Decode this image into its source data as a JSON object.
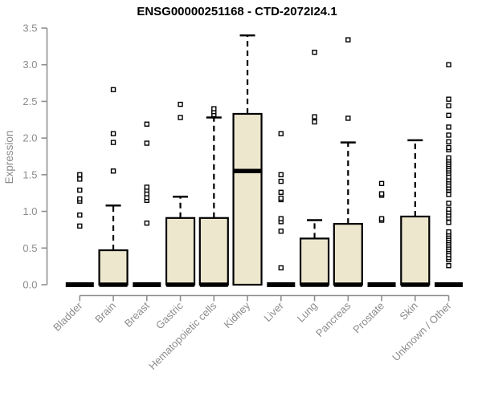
{
  "chart_data": {
    "type": "boxplot",
    "title": "ENSG00000251168 - CTD-2072I24.1",
    "ylabel": "Expression",
    "xlabel": "",
    "ylim": [
      0,
      3.5
    ],
    "yticks": [
      0,
      0.5,
      1.0,
      1.5,
      2.0,
      2.5,
      3.0,
      3.5
    ],
    "ytick_labels": [
      "0.0",
      "0.5",
      "1.0",
      "1.5",
      "2.0",
      "2.5",
      "3.0",
      "3.5"
    ],
    "grid": false,
    "legend": null,
    "colors": {
      "box_fill": "#EDE7CE",
      "box_stroke": "#000000",
      "median": "#000000",
      "whisker": "#000000",
      "outlier_stroke": "#000000",
      "outlier_fill": "#ffffff",
      "axis": "#8f8f8f",
      "tick_label": "#8c8c8c",
      "title": "#000000",
      "background": "#ffffff"
    },
    "categories": [
      "Bladder",
      "Brain",
      "Breast",
      "Gastric",
      "Hematopoietic cells",
      "Kidney",
      "Liver",
      "Lung",
      "Pancreas",
      "Prostate",
      "Skin",
      "Unknown / Other"
    ],
    "boxes": [
      {
        "category": "Bladder",
        "min": 0,
        "q1": 0,
        "median": 0,
        "q3": 0,
        "whisker_high": 0,
        "outliers": [
          0.8,
          0.95,
          1.14,
          1.17,
          1.29,
          1.44,
          1.5
        ]
      },
      {
        "category": "Brain",
        "min": 0,
        "q1": 0,
        "median": 0,
        "q3": 0.47,
        "whisker_high": 1.08,
        "outliers": [
          1.55,
          1.94,
          2.06,
          2.66
        ]
      },
      {
        "category": "Breast",
        "min": 0,
        "q1": 0,
        "median": 0,
        "q3": 0,
        "whisker_high": 0,
        "outliers": [
          0.84,
          1.15,
          1.19,
          1.24,
          1.29,
          1.33,
          1.93,
          2.19
        ]
      },
      {
        "category": "Gastric",
        "min": 0,
        "q1": 0,
        "median": 0,
        "q3": 0.91,
        "whisker_high": 1.2,
        "outliers": [
          2.28,
          2.46
        ]
      },
      {
        "category": "Hematopoietic cells",
        "min": 0,
        "q1": 0,
        "median": 0,
        "q3": 0.91,
        "whisker_high": 2.28,
        "outliers": [
          2.32,
          2.36,
          2.4
        ]
      },
      {
        "category": "Kidney",
        "min": 0,
        "q1": 0,
        "median": 1.55,
        "q3": 2.33,
        "whisker_high": 3.4,
        "outliers": []
      },
      {
        "category": "Liver",
        "min": 0,
        "q1": 0,
        "median": 0,
        "q3": 0,
        "whisker_high": 0,
        "outliers": [
          0.23,
          0.73,
          0.86,
          0.9,
          1.16,
          1.18,
          1.26,
          1.41,
          1.5,
          2.06
        ]
      },
      {
        "category": "Lung",
        "min": 0,
        "q1": 0,
        "median": 0,
        "q3": 0.63,
        "whisker_high": 0.88,
        "outliers": [
          2.22,
          2.29,
          3.17
        ]
      },
      {
        "category": "Pancreas",
        "min": 0,
        "q1": 0,
        "median": 0,
        "q3": 0.83,
        "whisker_high": 1.94,
        "outliers": [
          2.27,
          3.34
        ]
      },
      {
        "category": "Prostate",
        "min": 0,
        "q1": 0,
        "median": 0,
        "q3": 0,
        "whisker_high": 0,
        "outliers": [
          0.88,
          0.9,
          1.22,
          1.24,
          1.38
        ]
      },
      {
        "category": "Skin",
        "min": 0,
        "q1": 0,
        "median": 0,
        "q3": 0.93,
        "whisker_high": 1.97,
        "outliers": []
      },
      {
        "category": "Unknown / Other",
        "min": 0,
        "q1": 0,
        "median": 0,
        "q3": 0,
        "whisker_high": 0,
        "outliers": [
          0.26,
          0.34,
          0.37,
          0.41,
          0.45,
          0.48,
          0.51,
          0.54,
          0.57,
          0.6,
          0.63,
          0.66,
          0.69,
          0.72,
          0.85,
          0.91,
          0.95,
          0.99,
          1.03,
          1.11,
          1.23,
          1.29,
          1.32,
          1.36,
          1.4,
          1.43,
          1.47,
          1.52,
          1.55,
          1.58,
          1.61,
          1.64,
          1.67,
          1.7,
          1.73,
          1.84,
          1.87,
          1.95,
          2.04,
          2.15,
          2.31,
          2.44,
          2.53,
          3.0
        ]
      }
    ]
  }
}
